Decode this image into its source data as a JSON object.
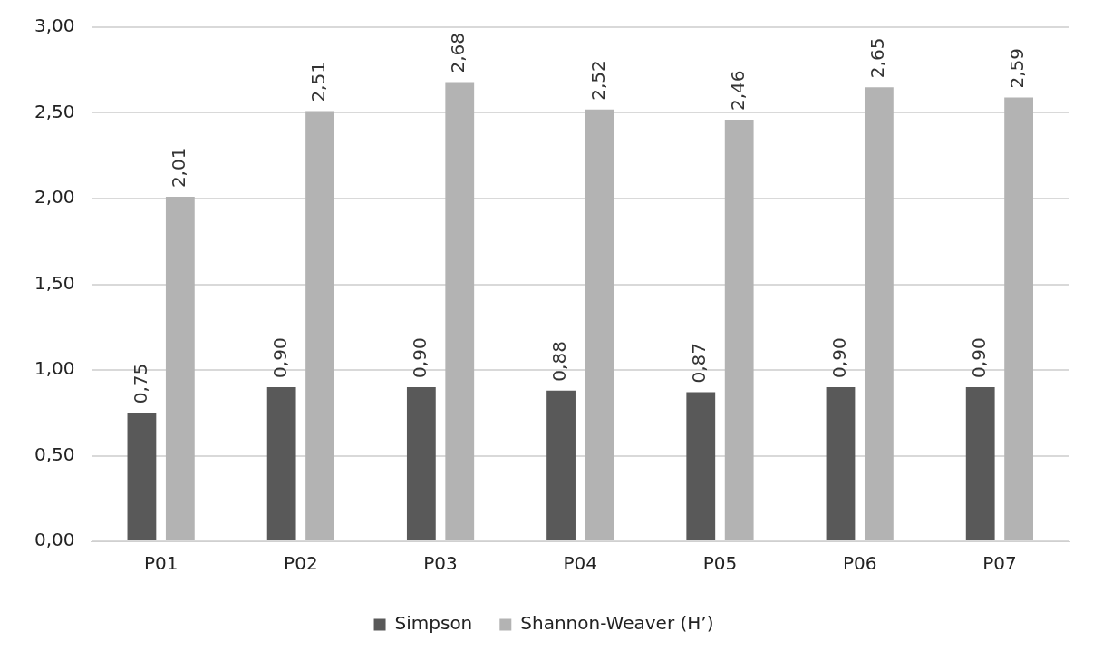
{
  "chart_data": {
    "type": "bar",
    "categories": [
      "P01",
      "P02",
      "P03",
      "P04",
      "P05",
      "P06",
      "P07"
    ],
    "series": [
      {
        "name": "Simpson",
        "color": "#595959",
        "values": [
          0.75,
          0.9,
          0.9,
          0.88,
          0.87,
          0.9,
          0.9
        ],
        "value_labels": [
          "0,75",
          "0,90",
          "0,90",
          "0,88",
          "0,87",
          "0,90",
          "0,90"
        ]
      },
      {
        "name": "Shannon-Weaver (H’)",
        "color": "#b3b3b3",
        "values": [
          2.01,
          2.51,
          2.68,
          2.52,
          2.46,
          2.65,
          2.59
        ],
        "value_labels": [
          "2,01",
          "2,51",
          "2,68",
          "2,52",
          "2,46",
          "2,65",
          "2,59"
        ]
      }
    ],
    "ylim": [
      0,
      3
    ],
    "yticks": [
      {
        "value": 0,
        "label": "0,00"
      },
      {
        "value": 0.5,
        "label": "0,50"
      },
      {
        "value": 1,
        "label": "1,00"
      },
      {
        "value": 1.5,
        "label": "1,50"
      },
      {
        "value": 2,
        "label": "2,00"
      },
      {
        "value": 2.5,
        "label": "2,50"
      },
      {
        "value": 3,
        "label": "3,00"
      }
    ],
    "grid": "y",
    "legend": "bottom"
  }
}
